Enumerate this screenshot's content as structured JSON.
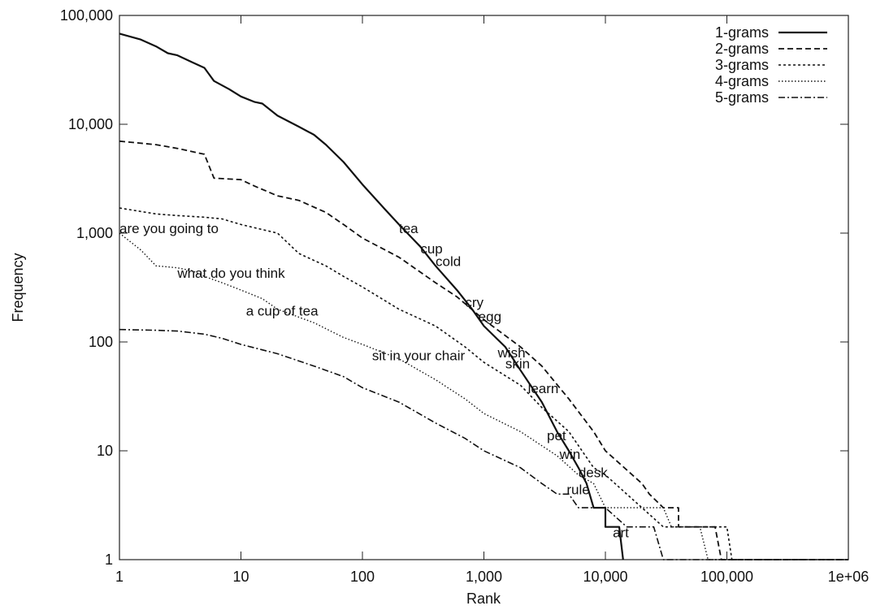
{
  "chart_data": {
    "type": "line",
    "x_scale": "log",
    "y_scale": "log",
    "xlim": [
      1,
      1000000
    ],
    "ylim": [
      1,
      100000
    ],
    "xlabel": "Rank",
    "ylabel": "Frequency",
    "x_ticks": [
      "1",
      "10",
      "100",
      "1,000",
      "10,000",
      "100,000",
      "1e+06"
    ],
    "y_ticks": [
      "1",
      "10",
      "100",
      "1,000",
      "10,000",
      "100,000"
    ],
    "legend_position": "top-right",
    "grid": false,
    "series": [
      {
        "name": "1-grams",
        "style": "solid",
        "width": 2.2,
        "points": [
          [
            1,
            68000
          ],
          [
            1.5,
            60000
          ],
          [
            2,
            52000
          ],
          [
            2.5,
            45000
          ],
          [
            3,
            43000
          ],
          [
            4,
            37000
          ],
          [
            5,
            33000
          ],
          [
            6,
            25000
          ],
          [
            8,
            21000
          ],
          [
            10,
            18000
          ],
          [
            13,
            16000
          ],
          [
            15,
            15500
          ],
          [
            20,
            12000
          ],
          [
            30,
            9500
          ],
          [
            40,
            8000
          ],
          [
            50,
            6500
          ],
          [
            70,
            4500
          ],
          [
            100,
            2800
          ],
          [
            150,
            1700
          ],
          [
            200,
            1200
          ],
          [
            300,
            750
          ],
          [
            400,
            500
          ],
          [
            600,
            300
          ],
          [
            800,
            200
          ],
          [
            1000,
            140
          ],
          [
            1500,
            90
          ],
          [
            2000,
            55
          ],
          [
            3000,
            28
          ],
          [
            4000,
            15
          ],
          [
            5000,
            10
          ],
          [
            6000,
            7
          ],
          [
            7000,
            5
          ],
          [
            8000,
            3
          ],
          [
            10000,
            3
          ],
          [
            10000,
            2
          ],
          [
            13000,
            2
          ],
          [
            14000,
            1
          ]
        ]
      },
      {
        "name": "2-grams",
        "style": "dash",
        "width": 1.8,
        "points": [
          [
            1,
            7000
          ],
          [
            2,
            6500
          ],
          [
            3,
            6000
          ],
          [
            5,
            5300
          ],
          [
            6,
            3200
          ],
          [
            10,
            3100
          ],
          [
            13,
            2700
          ],
          [
            20,
            2200
          ],
          [
            30,
            2000
          ],
          [
            50,
            1550
          ],
          [
            70,
            1200
          ],
          [
            100,
            900
          ],
          [
            200,
            600
          ],
          [
            400,
            350
          ],
          [
            600,
            260
          ],
          [
            1000,
            160
          ],
          [
            2000,
            90
          ],
          [
            3000,
            60
          ],
          [
            5000,
            30
          ],
          [
            8000,
            15
          ],
          [
            10000,
            10
          ],
          [
            20000,
            5
          ],
          [
            23000,
            4
          ],
          [
            30000,
            3
          ],
          [
            40000,
            3
          ],
          [
            40000,
            2
          ],
          [
            80000,
            2
          ],
          [
            90000,
            1
          ],
          [
            1000000,
            1
          ]
        ]
      },
      {
        "name": "3-grams",
        "style": "short-dash",
        "width": 1.6,
        "points": [
          [
            1,
            1700
          ],
          [
            2,
            1500
          ],
          [
            3,
            1450
          ],
          [
            5,
            1400
          ],
          [
            7,
            1350
          ],
          [
            10,
            1200
          ],
          [
            20,
            1000
          ],
          [
            30,
            650
          ],
          [
            40,
            560
          ],
          [
            50,
            500
          ],
          [
            70,
            400
          ],
          [
            100,
            320
          ],
          [
            200,
            200
          ],
          [
            400,
            140
          ],
          [
            700,
            90
          ],
          [
            1000,
            65
          ],
          [
            2000,
            40
          ],
          [
            3000,
            25
          ],
          [
            5000,
            15
          ],
          [
            8000,
            7
          ],
          [
            10000,
            6
          ],
          [
            20000,
            3
          ],
          [
            30000,
            2
          ],
          [
            100000,
            2
          ],
          [
            110000,
            1
          ],
          [
            1000000,
            1
          ]
        ]
      },
      {
        "name": "4-grams",
        "style": "dot",
        "width": 1.4,
        "points": [
          [
            1,
            1000
          ],
          [
            1.5,
            700
          ],
          [
            2,
            500
          ],
          [
            3,
            480
          ],
          [
            4,
            450
          ],
          [
            5,
            400
          ],
          [
            7,
            350
          ],
          [
            10,
            300
          ],
          [
            15,
            250
          ],
          [
            20,
            200
          ],
          [
            40,
            150
          ],
          [
            70,
            110
          ],
          [
            100,
            95
          ],
          [
            200,
            70
          ],
          [
            400,
            45
          ],
          [
            700,
            30
          ],
          [
            1000,
            22
          ],
          [
            2000,
            15
          ],
          [
            4000,
            9
          ],
          [
            6000,
            6
          ],
          [
            8000,
            5
          ],
          [
            10000,
            3
          ],
          [
            30000,
            3
          ],
          [
            35000,
            2
          ],
          [
            60000,
            2
          ],
          [
            70000,
            1
          ],
          [
            1000000,
            1
          ]
        ]
      },
      {
        "name": "5-grams",
        "style": "dash-dot",
        "width": 1.6,
        "points": [
          [
            1,
            130
          ],
          [
            2,
            128
          ],
          [
            3,
            126
          ],
          [
            5,
            118
          ],
          [
            7,
            108
          ],
          [
            10,
            95
          ],
          [
            20,
            78
          ],
          [
            40,
            60
          ],
          [
            70,
            48
          ],
          [
            100,
            38
          ],
          [
            200,
            28
          ],
          [
            400,
            18
          ],
          [
            700,
            13
          ],
          [
            1000,
            10
          ],
          [
            2000,
            7
          ],
          [
            3000,
            5
          ],
          [
            4000,
            4
          ],
          [
            5000,
            4
          ],
          [
            6000,
            3
          ],
          [
            10000,
            3
          ],
          [
            15000,
            2
          ],
          [
            25000,
            2
          ],
          [
            30000,
            1
          ],
          [
            1000000,
            1
          ]
        ]
      }
    ],
    "annotations": [
      {
        "text": "tea",
        "x": 200,
        "y": 1000
      },
      {
        "text": "cup",
        "x": 300,
        "y": 650
      },
      {
        "text": "cold",
        "x": 400,
        "y": 500
      },
      {
        "text": "cry",
        "x": 700,
        "y": 210
      },
      {
        "text": "egg",
        "x": 900,
        "y": 155
      },
      {
        "text": "wish",
        "x": 1300,
        "y": 72
      },
      {
        "text": "skin",
        "x": 1500,
        "y": 57
      },
      {
        "text": "learn",
        "x": 2300,
        "y": 34
      },
      {
        "text": "pet",
        "x": 3300,
        "y": 12.5
      },
      {
        "text": "win",
        "x": 4200,
        "y": 8.4
      },
      {
        "text": "desk",
        "x": 6000,
        "y": 5.7
      },
      {
        "text": "rule",
        "x": 4800,
        "y": 4.0
      },
      {
        "text": "art",
        "x": 11500,
        "y": 1.6
      },
      {
        "text": "are you going to",
        "x": 1,
        "y": 1000
      },
      {
        "text": "what do you think",
        "x": 3,
        "y": 390
      },
      {
        "text": "a cup of tea",
        "x": 11,
        "y": 175
      },
      {
        "text": "sit in your chair",
        "x": 120,
        "y": 68
      }
    ]
  }
}
